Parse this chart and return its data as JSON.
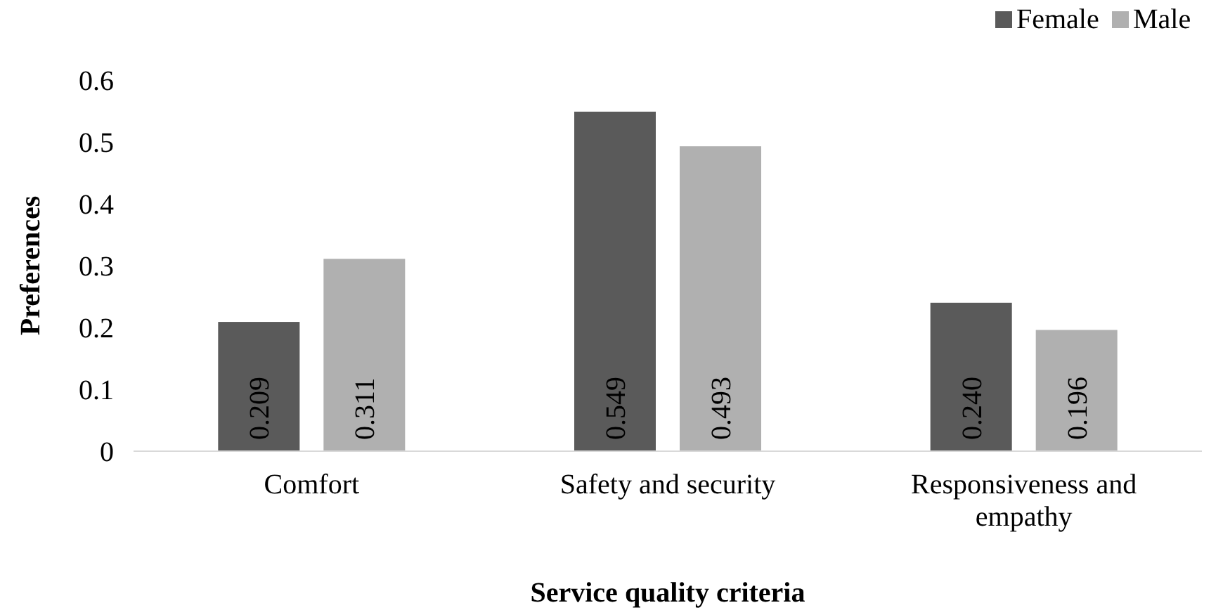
{
  "chart_data": {
    "type": "bar",
    "xlabel": "Service quality criteria",
    "ylabel": "Preferences",
    "categories": [
      "Comfort",
      "Safety and security",
      "Responsiveness and empathy"
    ],
    "series": [
      {
        "name": "Female",
        "color": "#5a5a5a",
        "values": [
          0.209,
          0.549,
          0.24
        ],
        "value_labels": [
          "0.209",
          "0.549",
          "0.240"
        ]
      },
      {
        "name": "Male",
        "color": "#b0b0b0",
        "values": [
          0.311,
          0.493,
          0.196
        ],
        "value_labels": [
          "0.311",
          "0.493",
          "0.196"
        ]
      }
    ],
    "ylim": [
      0,
      0.6
    ],
    "yticks": [
      0,
      0.1,
      0.2,
      0.3,
      0.4,
      0.5,
      0.6
    ],
    "grid": false,
    "legend": "top right"
  }
}
